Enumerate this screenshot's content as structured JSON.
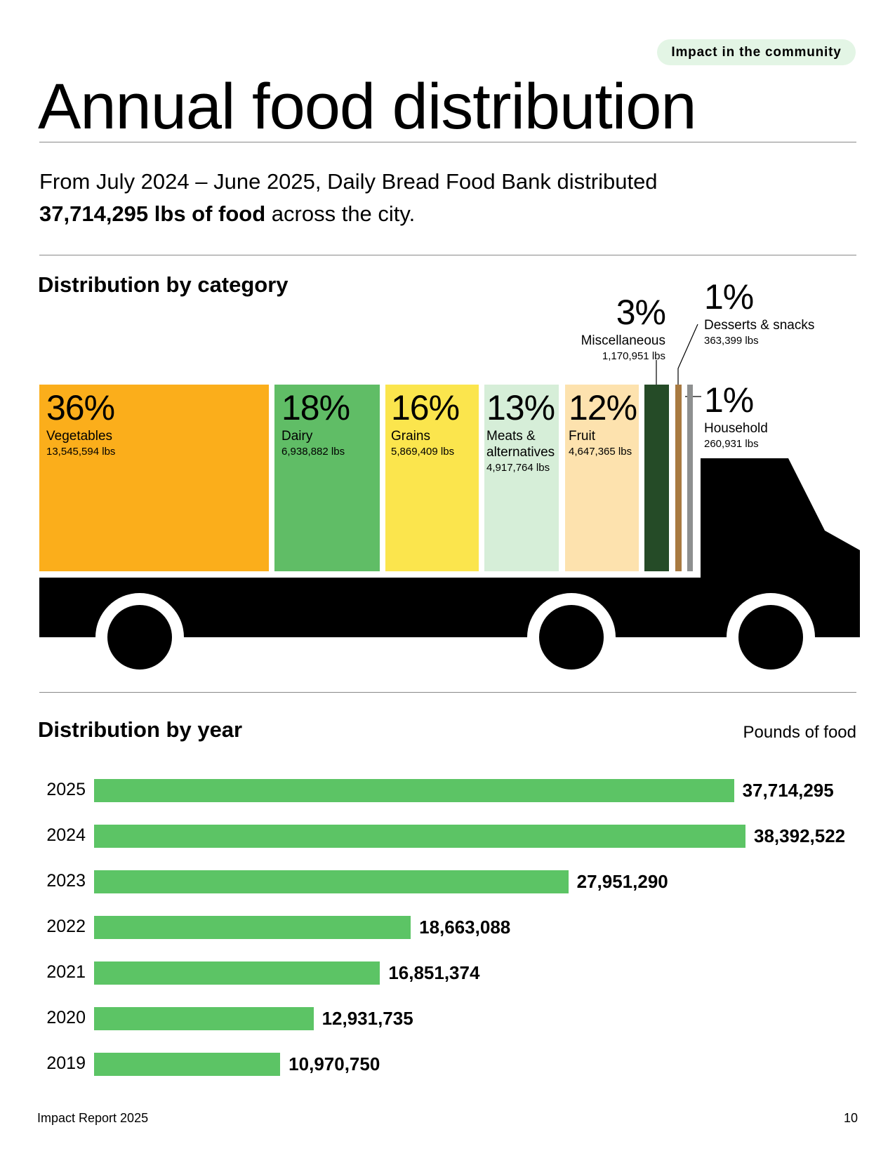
{
  "header": {
    "tag": "Impact in the community",
    "title": "Annual food distribution",
    "subtitle_plain": "From July 2024 – June 2025, Daily Bread Food Bank distributed",
    "subtitle_bold": "37,714,295 lbs of food",
    "subtitle_end": " across the city."
  },
  "colors": {
    "vegetables": "#fbae1b",
    "dairy": "#60bd66",
    "grains": "#fbe54d",
    "meats": "#d6eed8",
    "fruit": "#fde2ae",
    "misc": "#254b27",
    "desserts": "#a87a41",
    "household": "#8e9090",
    "year_bar": "#5cc465",
    "pill": "#e3f5e5",
    "truck": "#000000"
  },
  "chart_data": [
    {
      "type": "bar",
      "title": "Distribution by category",
      "orientation": "stacked-horizontal (truck cargo)",
      "categories": [
        "Vegetables",
        "Dairy",
        "Grains",
        "Meats & alternatives",
        "Fruit",
        "Miscellaneous",
        "Desserts & snacks",
        "Household"
      ],
      "percent_labels": [
        "36%",
        "18%",
        "16%",
        "13%",
        "12%",
        "3%",
        "1%",
        "1%"
      ],
      "lbs_labels": [
        "13,545,594 lbs",
        "6,938,882 lbs",
        "5,869,409 lbs",
        "4,917,764 lbs",
        "4,647,365 lbs",
        "1,170,951 lbs",
        "363,399 lbs",
        "260,931 lbs"
      ],
      "values": [
        13545594,
        6938882,
        5869409,
        4917764,
        4647365,
        1170951,
        363399,
        260931
      ],
      "name_lines": [
        [
          "Vegetables"
        ],
        [
          "Dairy"
        ],
        [
          "Grains"
        ],
        [
          "Meats &",
          "alternatives"
        ],
        [
          "Fruit"
        ],
        [
          "Miscellaneous"
        ],
        [
          "Desserts & snacks"
        ],
        [
          "Household"
        ]
      ]
    },
    {
      "type": "bar",
      "title": "Distribution by year",
      "orientation": "horizontal",
      "ylabel": "Pounds of food",
      "categories": [
        "2025",
        "2024",
        "2023",
        "2022",
        "2021",
        "2020",
        "2019"
      ],
      "values": [
        37714295,
        38392522,
        27951290,
        18663088,
        16851374,
        12931735,
        10970750
      ],
      "value_labels": [
        "37,714,295",
        "38,392,522",
        "27,951,290",
        "18,663,088",
        "16,851,374",
        "12,931,735",
        "10,970,750"
      ],
      "xlim": [
        0,
        38392522
      ]
    }
  ],
  "footer": {
    "left": "Impact Report 2025",
    "page": "10"
  }
}
